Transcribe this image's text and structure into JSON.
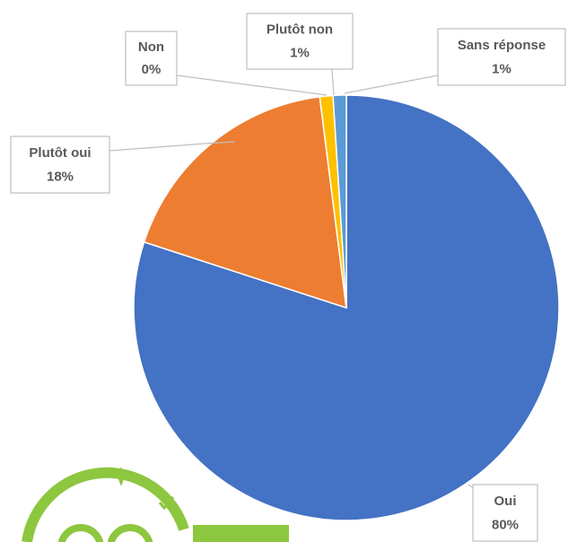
{
  "chart_data": {
    "type": "pie",
    "categories": [
      "Oui",
      "Plutôt oui",
      "Non",
      "Plutôt non",
      "Sans réponse"
    ],
    "values": [
      80,
      18,
      0,
      1,
      1
    ],
    "value_labels": [
      "80%",
      "18%",
      "0%",
      "1%",
      "1%"
    ],
    "colors": [
      "#4472c4",
      "#ed7d31",
      "#a5a5a5",
      "#ffc000",
      "#5b9bd5"
    ]
  }
}
